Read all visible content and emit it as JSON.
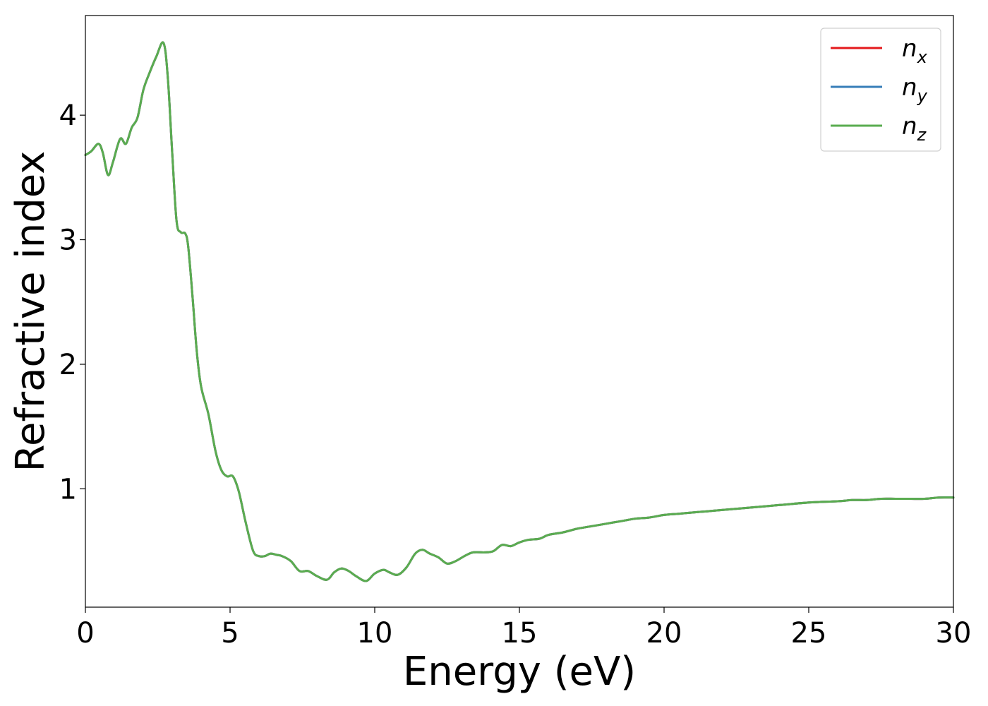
{
  "chart_data": {
    "type": "line",
    "title": "",
    "xlabel": "Energy (eV)",
    "ylabel": "Refractive index",
    "xlim": [
      0,
      30
    ],
    "ylim": [
      0.05,
      4.8
    ],
    "xticks": [
      0,
      5,
      10,
      15,
      20,
      25,
      30
    ],
    "yticks": [
      1,
      2,
      3,
      4
    ],
    "grid": false,
    "legend_position": "top-right",
    "series": [
      {
        "name": "n_x",
        "label_base": "n",
        "label_sub": "x",
        "color": "#e41a1c",
        "x": [
          0,
          0.2,
          0.45,
          0.6,
          0.78,
          0.95,
          1.2,
          1.4,
          1.6,
          1.8,
          2.0,
          2.2,
          2.45,
          2.7,
          2.85,
          3.0,
          3.15,
          3.3,
          3.45,
          3.55,
          3.7,
          3.85,
          4.0,
          4.25,
          4.5,
          4.7,
          4.9,
          5.1,
          5.3,
          5.55,
          5.8,
          6.0,
          6.2,
          6.4,
          6.6,
          6.8,
          7.1,
          7.4,
          7.7,
          8.0,
          8.35,
          8.6,
          8.85,
          9.1,
          9.35,
          9.7,
          10.0,
          10.3,
          10.5,
          10.8,
          11.1,
          11.4,
          11.65,
          11.9,
          12.2,
          12.5,
          12.8,
          13.1,
          13.4,
          13.8,
          14.1,
          14.4,
          14.7,
          15.0,
          15.3,
          15.7,
          16.0,
          16.5,
          17.0,
          17.5,
          18.0,
          18.5,
          19.0,
          19.5,
          20.0,
          20.5,
          21.0,
          21.5,
          22.0,
          23.0,
          24.0,
          25.0,
          26.0,
          26.5,
          27.0,
          27.5,
          28.0,
          28.5,
          29.0,
          29.5,
          30.0
        ],
        "y": [
          3.68,
          3.71,
          3.77,
          3.7,
          3.52,
          3.62,
          3.81,
          3.77,
          3.9,
          3.98,
          4.2,
          4.33,
          4.47,
          4.58,
          4.3,
          3.7,
          3.15,
          3.06,
          3.05,
          2.95,
          2.55,
          2.1,
          1.82,
          1.6,
          1.3,
          1.15,
          1.1,
          1.1,
          0.98,
          0.72,
          0.5,
          0.46,
          0.46,
          0.48,
          0.47,
          0.46,
          0.42,
          0.34,
          0.34,
          0.3,
          0.27,
          0.33,
          0.36,
          0.34,
          0.3,
          0.26,
          0.32,
          0.35,
          0.33,
          0.31,
          0.37,
          0.48,
          0.51,
          0.48,
          0.45,
          0.4,
          0.42,
          0.46,
          0.49,
          0.49,
          0.5,
          0.55,
          0.54,
          0.57,
          0.59,
          0.6,
          0.63,
          0.65,
          0.68,
          0.7,
          0.72,
          0.74,
          0.76,
          0.77,
          0.79,
          0.8,
          0.81,
          0.82,
          0.83,
          0.85,
          0.87,
          0.89,
          0.9,
          0.91,
          0.91,
          0.92,
          0.92,
          0.92,
          0.92,
          0.93,
          0.93
        ]
      },
      {
        "name": "n_y",
        "label_base": "n",
        "label_sub": "y",
        "color": "#377eb8",
        "x": [
          0,
          0.2,
          0.45,
          0.6,
          0.78,
          0.95,
          1.2,
          1.4,
          1.6,
          1.8,
          2.0,
          2.2,
          2.45,
          2.7,
          2.85,
          3.0,
          3.15,
          3.3,
          3.45,
          3.55,
          3.7,
          3.85,
          4.0,
          4.25,
          4.5,
          4.7,
          4.9,
          5.1,
          5.3,
          5.55,
          5.8,
          6.0,
          6.2,
          6.4,
          6.6,
          6.8,
          7.1,
          7.4,
          7.7,
          8.0,
          8.35,
          8.6,
          8.85,
          9.1,
          9.35,
          9.7,
          10.0,
          10.3,
          10.5,
          10.8,
          11.1,
          11.4,
          11.65,
          11.9,
          12.2,
          12.5,
          12.8,
          13.1,
          13.4,
          13.8,
          14.1,
          14.4,
          14.7,
          15.0,
          15.3,
          15.7,
          16.0,
          16.5,
          17.0,
          17.5,
          18.0,
          18.5,
          19.0,
          19.5,
          20.0,
          20.5,
          21.0,
          21.5,
          22.0,
          23.0,
          24.0,
          25.0,
          26.0,
          26.5,
          27.0,
          27.5,
          28.0,
          28.5,
          29.0,
          29.5,
          30.0
        ],
        "y": [
          3.68,
          3.71,
          3.77,
          3.7,
          3.52,
          3.62,
          3.81,
          3.77,
          3.9,
          3.98,
          4.2,
          4.33,
          4.47,
          4.58,
          4.3,
          3.7,
          3.15,
          3.06,
          3.05,
          2.95,
          2.55,
          2.1,
          1.82,
          1.6,
          1.3,
          1.15,
          1.1,
          1.1,
          0.98,
          0.72,
          0.5,
          0.46,
          0.46,
          0.48,
          0.47,
          0.46,
          0.42,
          0.34,
          0.34,
          0.3,
          0.27,
          0.33,
          0.36,
          0.34,
          0.3,
          0.26,
          0.32,
          0.35,
          0.33,
          0.31,
          0.37,
          0.48,
          0.51,
          0.48,
          0.45,
          0.4,
          0.42,
          0.46,
          0.49,
          0.49,
          0.5,
          0.55,
          0.54,
          0.57,
          0.59,
          0.6,
          0.63,
          0.65,
          0.68,
          0.7,
          0.72,
          0.74,
          0.76,
          0.77,
          0.79,
          0.8,
          0.81,
          0.82,
          0.83,
          0.85,
          0.87,
          0.89,
          0.9,
          0.91,
          0.91,
          0.92,
          0.92,
          0.92,
          0.92,
          0.93,
          0.93
        ]
      },
      {
        "name": "n_z",
        "label_base": "n",
        "label_sub": "z",
        "color": "#5aac50",
        "x": [
          0,
          0.2,
          0.45,
          0.6,
          0.78,
          0.95,
          1.2,
          1.4,
          1.6,
          1.8,
          2.0,
          2.2,
          2.45,
          2.7,
          2.85,
          3.0,
          3.15,
          3.3,
          3.45,
          3.55,
          3.7,
          3.85,
          4.0,
          4.25,
          4.5,
          4.7,
          4.9,
          5.1,
          5.3,
          5.55,
          5.8,
          6.0,
          6.2,
          6.4,
          6.6,
          6.8,
          7.1,
          7.4,
          7.7,
          8.0,
          8.35,
          8.6,
          8.85,
          9.1,
          9.35,
          9.7,
          10.0,
          10.3,
          10.5,
          10.8,
          11.1,
          11.4,
          11.65,
          11.9,
          12.2,
          12.5,
          12.8,
          13.1,
          13.4,
          13.8,
          14.1,
          14.4,
          14.7,
          15.0,
          15.3,
          15.7,
          16.0,
          16.5,
          17.0,
          17.5,
          18.0,
          18.5,
          19.0,
          19.5,
          20.0,
          20.5,
          21.0,
          21.5,
          22.0,
          23.0,
          24.0,
          25.0,
          26.0,
          26.5,
          27.0,
          27.5,
          28.0,
          28.5,
          29.0,
          29.5,
          30.0
        ],
        "y": [
          3.68,
          3.71,
          3.77,
          3.7,
          3.52,
          3.62,
          3.81,
          3.77,
          3.9,
          3.98,
          4.2,
          4.33,
          4.47,
          4.58,
          4.3,
          3.7,
          3.15,
          3.06,
          3.05,
          2.95,
          2.55,
          2.1,
          1.82,
          1.6,
          1.3,
          1.15,
          1.1,
          1.1,
          0.98,
          0.72,
          0.5,
          0.46,
          0.46,
          0.48,
          0.47,
          0.46,
          0.42,
          0.34,
          0.34,
          0.3,
          0.27,
          0.33,
          0.36,
          0.34,
          0.3,
          0.26,
          0.32,
          0.35,
          0.33,
          0.31,
          0.37,
          0.48,
          0.51,
          0.48,
          0.45,
          0.4,
          0.42,
          0.46,
          0.49,
          0.49,
          0.5,
          0.55,
          0.54,
          0.57,
          0.59,
          0.6,
          0.63,
          0.65,
          0.68,
          0.7,
          0.72,
          0.74,
          0.76,
          0.77,
          0.79,
          0.8,
          0.81,
          0.82,
          0.83,
          0.85,
          0.87,
          0.89,
          0.9,
          0.91,
          0.91,
          0.92,
          0.92,
          0.92,
          0.92,
          0.93,
          0.93
        ]
      }
    ]
  }
}
